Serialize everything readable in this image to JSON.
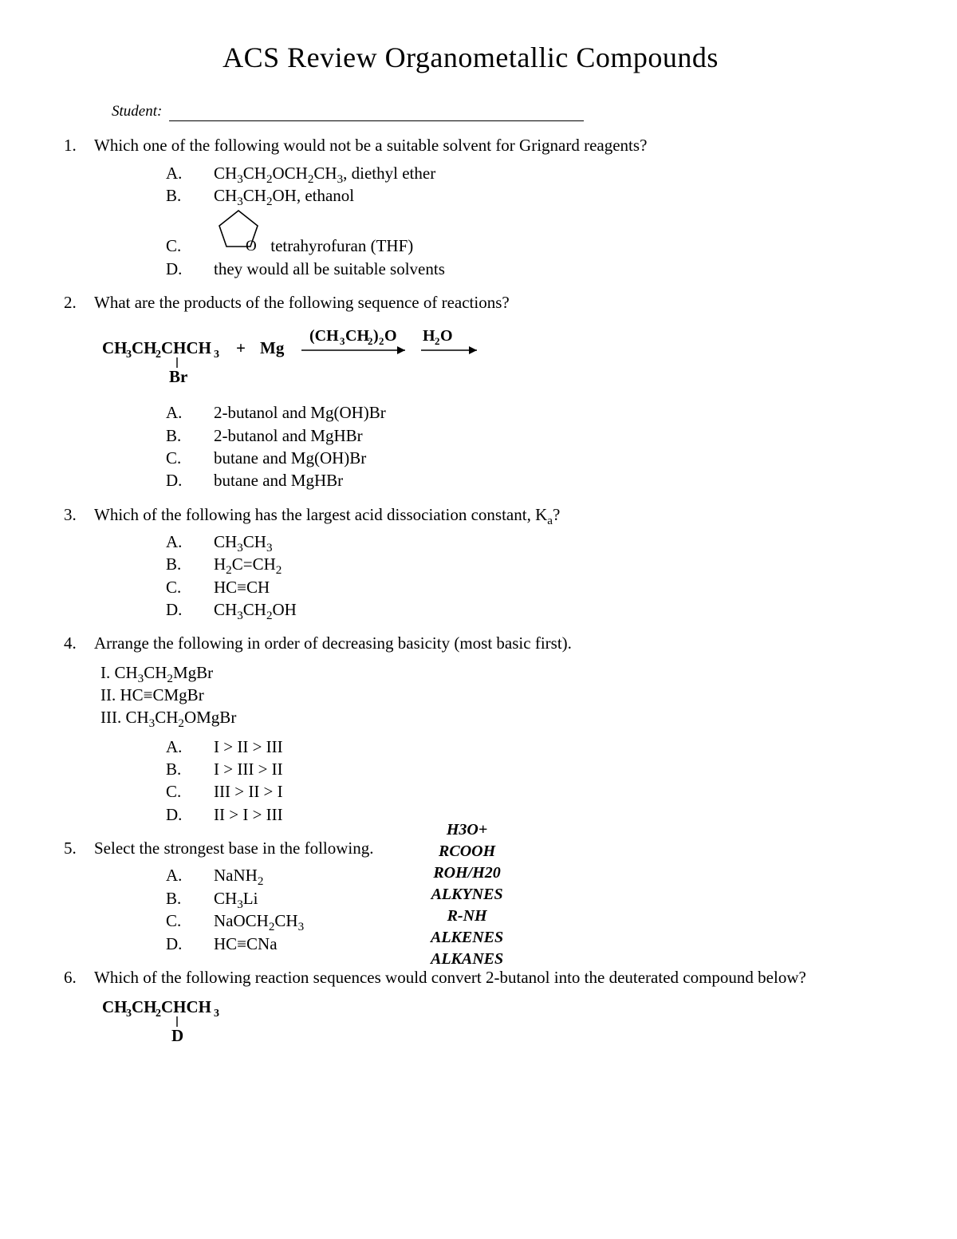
{
  "title": "ACS Review Organometallic Compounds",
  "student_label": "Student:",
  "q1": {
    "num": "1.",
    "stem": "Which one of the following would not be a suitable solvent for Grignard reagents?",
    "A": {
      "letter": "A.",
      "text_html": "CH<sub>3</sub>CH<sub>2</sub>OCH<sub>2</sub>CH<sub>3</sub>, diethyl ether"
    },
    "B": {
      "letter": "B.",
      "text_html": "CH<sub>3</sub>CH<sub>2</sub>OH, ethanol"
    },
    "C": {
      "letter": "C.",
      "text_html": "tetrahyrofuran (THF)"
    },
    "D": {
      "letter": "D.",
      "text_html": "they would all be suitable solvents"
    }
  },
  "q2": {
    "num": "2.",
    "stem": "What are the products of the following sequence of reactions?",
    "reagent1": "(CH3CH2)2O",
    "reagent2": "H2O",
    "start_top": "CH3CH2CHCH3",
    "start_bot": "Br",
    "plus": "+",
    "mg": "Mg",
    "A": {
      "letter": "A.",
      "text_html": "2-butanol and Mg(OH)Br"
    },
    "B": {
      "letter": "B.",
      "text_html": "2-butanol and MgHBr"
    },
    "C": {
      "letter": "C.",
      "text_html": "butane and Mg(OH)Br"
    },
    "D": {
      "letter": "D.",
      "text_html": "butane and MgHBr"
    }
  },
  "q3": {
    "num": "3.",
    "stem_html": "Which of the following has the largest acid dissociation constant, K<sub>a</sub>?",
    "A": {
      "letter": "A.",
      "text_html": "CH<sub>3</sub>CH<sub>3</sub>"
    },
    "B": {
      "letter": "B.",
      "text_html": "H<sub>2</sub>C=CH<sub>2</sub>"
    },
    "C": {
      "letter": "C.",
      "text_html": "HC≡CH"
    },
    "D": {
      "letter": "D.",
      "text_html": "CH<sub>3</sub>CH<sub>2</sub>OH"
    }
  },
  "q4": {
    "num": "4.",
    "stem": "Arrange the following in order of decreasing basicity (most basic first).",
    "r1_html": "I. CH<sub>3</sub>CH<sub>2</sub>MgBr",
    "r2_html": "II. HC≡CMgBr",
    "r3_html": "III. CH<sub>3</sub>CH<sub>2</sub>OMgBr",
    "A": {
      "letter": "A.",
      "text_html": "I > II > III"
    },
    "B": {
      "letter": "B.",
      "text_html": "I > III > II"
    },
    "C": {
      "letter": "C.",
      "text_html": "III > II > I"
    },
    "D": {
      "letter": "D.",
      "text_html": "II > I > III"
    }
  },
  "q5": {
    "num": "5.",
    "stem": "Select the strongest base in the following.",
    "A": {
      "letter": "A.",
      "text_html": "NaNH<sub>2</sub>"
    },
    "B": {
      "letter": "B.",
      "text_html": "CH<sub>3</sub>Li"
    },
    "C": {
      "letter": "C.",
      "text_html": "NaOCH<sub>2</sub>CH<sub>3</sub>"
    },
    "D": {
      "letter": "D.",
      "text_html": "HC≡CNa"
    },
    "side": {
      "l1": "H3O+",
      "l2": "RCOOH",
      "l3": "ROH/H20",
      "l4": "ALKYNES",
      "l5": "R-NH",
      "l6": "ALKENES",
      "l7": "ALKANES"
    }
  },
  "q6": {
    "num": "6.",
    "stem": "Which of the following reaction sequences would convert 2-butanol into the deuterated compound below?",
    "struct_top": "CH3CH2CHCH3",
    "struct_bot": "D"
  },
  "colors": {
    "text": "#000000",
    "background": "#ffffff"
  },
  "fonts": {
    "title_size_pt": 27,
    "body_size_pt": 16,
    "family": "Times New Roman"
  }
}
